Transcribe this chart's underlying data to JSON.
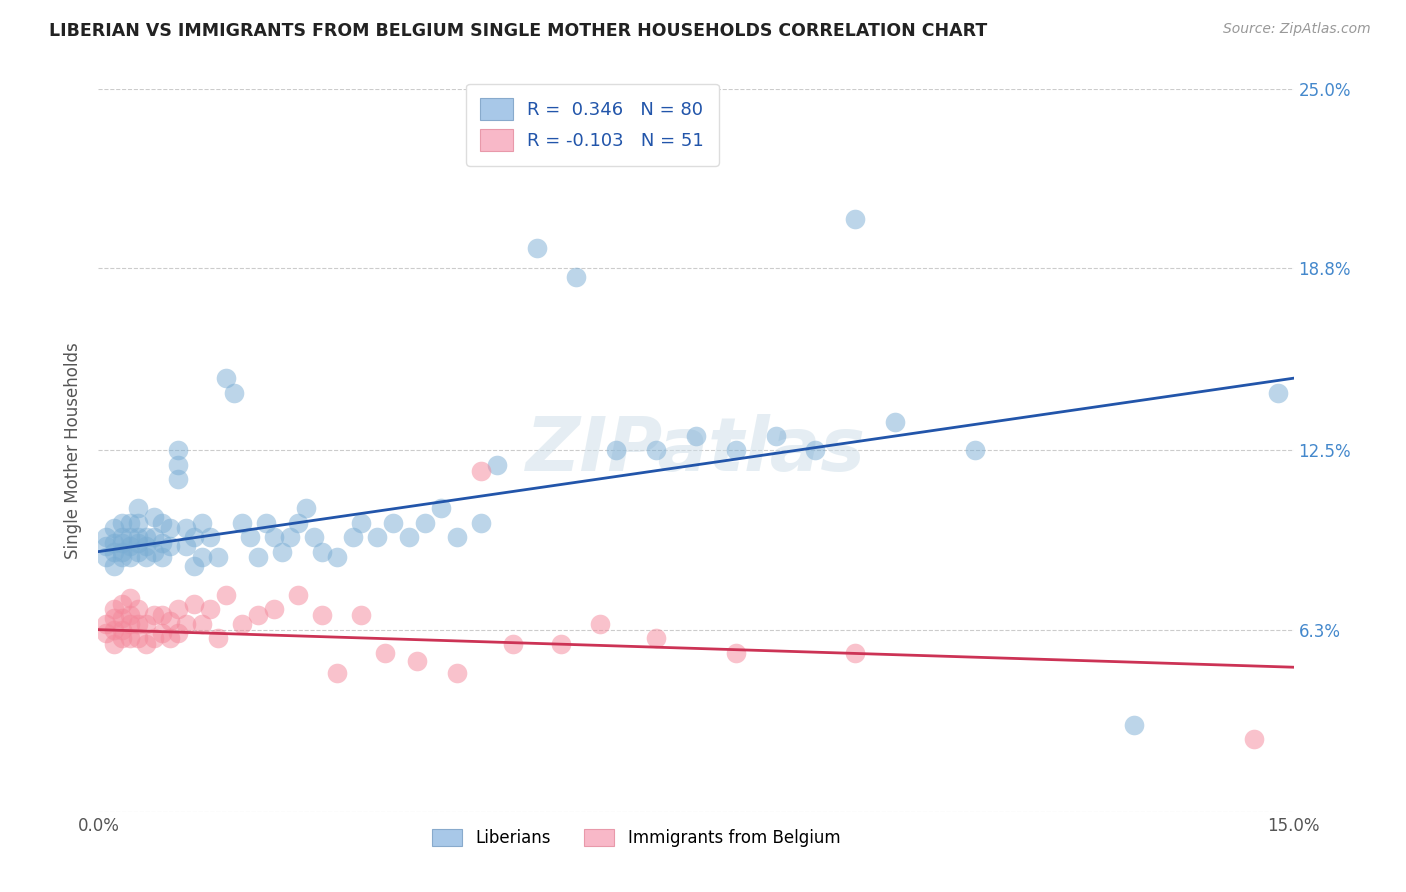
{
  "title": "LIBERIAN VS IMMIGRANTS FROM BELGIUM SINGLE MOTHER HOUSEHOLDS CORRELATION CHART",
  "source": "Source: ZipAtlas.com",
  "ylabel": "Single Mother Households",
  "xlim": [
    0.0,
    0.15
  ],
  "ylim": [
    0.0,
    0.25
  ],
  "y_ticks": [
    0.0,
    0.063,
    0.125,
    0.188,
    0.25
  ],
  "y_tick_labels": [
    "",
    "6.3%",
    "12.5%",
    "18.8%",
    "25.0%"
  ],
  "x_ticks": [
    0.0,
    0.05,
    0.1,
    0.15
  ],
  "x_tick_labels": [
    "0.0%",
    "",
    "",
    "15.0%"
  ],
  "liberian_color": "#7aadd4",
  "belgium_color": "#f4879a",
  "trendline_liberian_color": "#2255aa",
  "trendline_belgium_color": "#cc3355",
  "watermark": "ZIPatlas",
  "lib_trendline": [
    0.09,
    0.15
  ],
  "bel_trendline": [
    0.063,
    0.05
  ],
  "liberian_x": [
    0.001,
    0.001,
    0.001,
    0.002,
    0.002,
    0.002,
    0.002,
    0.003,
    0.003,
    0.003,
    0.003,
    0.003,
    0.004,
    0.004,
    0.004,
    0.004,
    0.005,
    0.005,
    0.005,
    0.005,
    0.005,
    0.006,
    0.006,
    0.006,
    0.007,
    0.007,
    0.007,
    0.008,
    0.008,
    0.008,
    0.009,
    0.009,
    0.01,
    0.01,
    0.01,
    0.011,
    0.011,
    0.012,
    0.012,
    0.013,
    0.013,
    0.014,
    0.015,
    0.016,
    0.017,
    0.018,
    0.019,
    0.02,
    0.021,
    0.022,
    0.023,
    0.024,
    0.025,
    0.026,
    0.027,
    0.028,
    0.03,
    0.032,
    0.033,
    0.035,
    0.037,
    0.039,
    0.041,
    0.043,
    0.045,
    0.048,
    0.05,
    0.055,
    0.06,
    0.065,
    0.07,
    0.075,
    0.08,
    0.085,
    0.09,
    0.095,
    0.1,
    0.11,
    0.13,
    0.148
  ],
  "liberian_y": [
    0.088,
    0.092,
    0.095,
    0.085,
    0.09,
    0.093,
    0.098,
    0.088,
    0.09,
    0.093,
    0.095,
    0.1,
    0.088,
    0.092,
    0.095,
    0.1,
    0.09,
    0.093,
    0.095,
    0.1,
    0.105,
    0.088,
    0.092,
    0.095,
    0.09,
    0.095,
    0.102,
    0.088,
    0.093,
    0.1,
    0.092,
    0.098,
    0.12,
    0.115,
    0.125,
    0.092,
    0.098,
    0.085,
    0.095,
    0.088,
    0.1,
    0.095,
    0.088,
    0.15,
    0.145,
    0.1,
    0.095,
    0.088,
    0.1,
    0.095,
    0.09,
    0.095,
    0.1,
    0.105,
    0.095,
    0.09,
    0.088,
    0.095,
    0.1,
    0.095,
    0.1,
    0.095,
    0.1,
    0.105,
    0.095,
    0.1,
    0.12,
    0.195,
    0.185,
    0.125,
    0.125,
    0.13,
    0.125,
    0.13,
    0.125,
    0.205,
    0.135,
    0.125,
    0.03,
    0.145
  ],
  "belgium_x": [
    0.001,
    0.001,
    0.002,
    0.002,
    0.002,
    0.002,
    0.003,
    0.003,
    0.003,
    0.003,
    0.004,
    0.004,
    0.004,
    0.004,
    0.005,
    0.005,
    0.005,
    0.006,
    0.006,
    0.007,
    0.007,
    0.008,
    0.008,
    0.009,
    0.009,
    0.01,
    0.01,
    0.011,
    0.012,
    0.013,
    0.014,
    0.015,
    0.016,
    0.018,
    0.02,
    0.022,
    0.025,
    0.028,
    0.03,
    0.033,
    0.036,
    0.04,
    0.045,
    0.048,
    0.052,
    0.058,
    0.063,
    0.07,
    0.08,
    0.095,
    0.145
  ],
  "belgium_y": [
    0.062,
    0.065,
    0.058,
    0.063,
    0.067,
    0.07,
    0.06,
    0.063,
    0.067,
    0.072,
    0.06,
    0.065,
    0.068,
    0.074,
    0.06,
    0.065,
    0.07,
    0.058,
    0.065,
    0.06,
    0.068,
    0.062,
    0.068,
    0.06,
    0.066,
    0.062,
    0.07,
    0.065,
    0.072,
    0.065,
    0.07,
    0.06,
    0.075,
    0.065,
    0.068,
    0.07,
    0.075,
    0.068,
    0.048,
    0.068,
    0.055,
    0.052,
    0.048,
    0.118,
    0.058,
    0.058,
    0.065,
    0.06,
    0.055,
    0.055,
    0.025
  ]
}
